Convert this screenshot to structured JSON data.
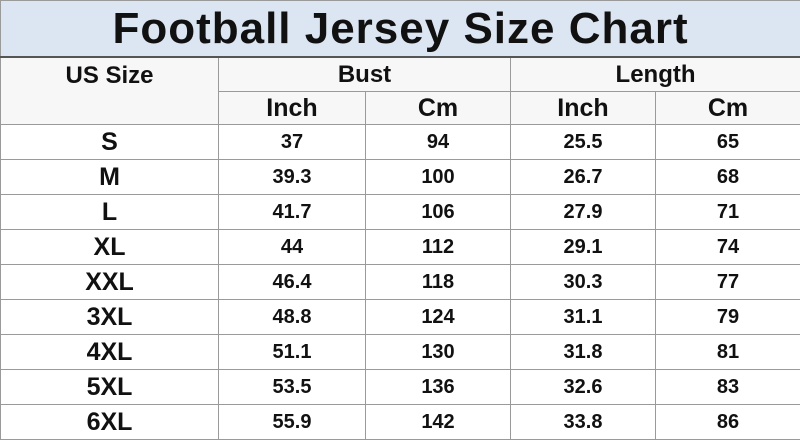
{
  "title": "Football Jersey Size Chart",
  "header": {
    "size": "US Size",
    "bust": "Bust",
    "length": "Length"
  },
  "subheader": [
    "Inch",
    "Cm",
    "Inch",
    "Cm"
  ],
  "rows": [
    [
      "S",
      37,
      94,
      25.5,
      65
    ],
    [
      "M",
      39.3,
      100,
      26.7,
      68
    ],
    [
      "L",
      41.7,
      106,
      27.9,
      71
    ],
    [
      "XL",
      44,
      112,
      29.1,
      74
    ],
    [
      "XXL",
      46.4,
      118,
      30.3,
      77
    ],
    [
      "3XL",
      48.8,
      124,
      31.1,
      79
    ],
    [
      "4XL",
      51.1,
      130,
      31.8,
      81
    ],
    [
      "5XL",
      53.5,
      136,
      32.6,
      83
    ],
    [
      "6XL",
      55.9,
      142,
      33.8,
      86
    ]
  ]
}
